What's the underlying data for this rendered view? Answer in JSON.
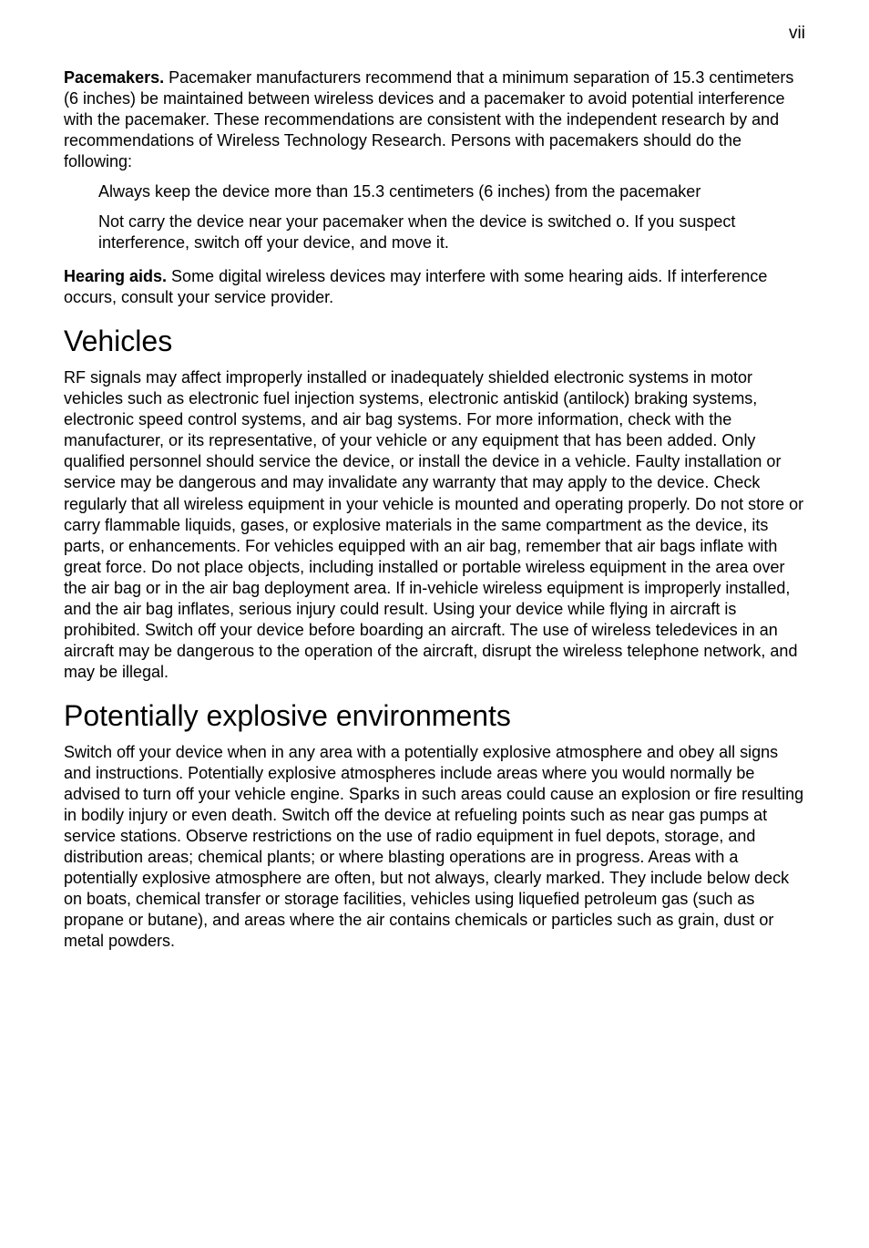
{
  "pageNumber": "vii",
  "para_pacemakers_lead": "Pacemakers.",
  "para_pacemakers_rest": " Pacemaker manufacturers recommend that a minimum separation of 15.3 centimeters (6 inches) be maintained between wireless devices and a pacemaker to avoid potential interference with the pacemaker. These recommendations are consistent with the independent research by and recommendations of Wireless Technology Research. Persons with pacemakers should do the following:",
  "bullet1": "Always keep the device more than 15.3 centimeters (6 inches) from the pacemaker",
  "bullet2": "Not carry the device near your pacemaker when the device is switched o. If you suspect interference, switch off your device, and move it.",
  "para_hearing_lead": "Hearing aids.",
  "para_hearing_rest": "  Some digital wireless devices may interfere with some hearing aids. If interference occurs, consult your service provider.",
  "heading_vehicles": "Vehicles",
  "para_vehicles": "RF signals may affect improperly installed or inadequately shielded electronic systems in motor vehicles such as electronic fuel injection systems, electronic antiskid (antilock) braking systems, electronic speed control systems, and air bag systems. For more information, check with the manufacturer, or its representative, of your vehicle or any equipment that has been added. Only qualified personnel should service the device, or install the device in a vehicle. Faulty installation or service may be dangerous and may invalidate any warranty that may apply to the device. Check regularly that all wireless equipment in your vehicle is mounted and operating properly. Do not store or carry flammable liquids, gases, or explosive materials in the same compartment as the device, its parts, or enhancements. For vehicles equipped with an air bag, remember that air bags inflate with great force. Do not place objects, including installed or portable wireless equipment in the area over the air bag or in the air bag deployment area. If in-vehicle wireless equipment is improperly installed, and the air bag inflates, serious injury could result. Using your device while flying in aircraft is prohibited. Switch off your device before boarding an aircraft. The use of wireless teledevices in an aircraft may be dangerous to the operation of the aircraft, disrupt the wireless telephone network, and may be illegal.",
  "heading_pee": "Potentially explosive environments",
  "para_pee": "Switch off your device when in any area with a potentially explosive atmosphere and obey all signs and instructions. Potentially explosive atmospheres include areas where you would normally be advised to turn off your vehicle engine. Sparks in such areas could cause an explosion or fire resulting in bodily injury or even death. Switch off the device at refueling points such as near gas pumps at service stations. Observe restrictions on the use of radio equipment in fuel depots, storage, and distribution areas; chemical plants; or where blasting operations are in progress. Areas with a potentially explosive atmosphere are often, but not always, clearly marked. They include below deck on boats, chemical transfer or storage facilities, vehicles using liquefied petroleum gas (such as propane or butane), and areas where the air contains chemicals or particles such as grain, dust or metal powders."
}
